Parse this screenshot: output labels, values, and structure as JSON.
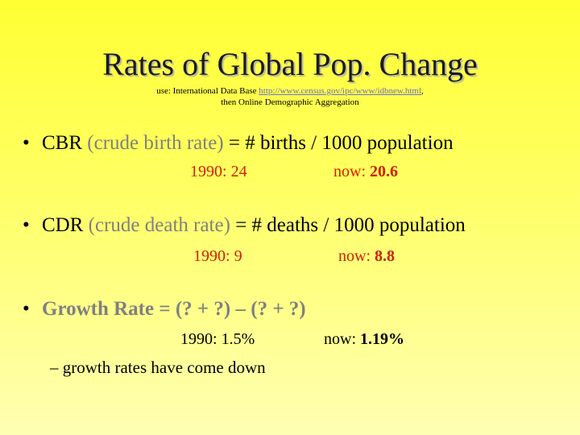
{
  "title": "Rates of Global Pop. Change",
  "source": {
    "prefix": "use: International Data Base ",
    "link": "http://www.census.gov/ipc/www/idbnew.html",
    "suffix": ",",
    "line2": "then Online Demographic Aggregation"
  },
  "bullets": [
    {
      "marker": "•",
      "term": "CBR",
      "expansion": " (crude birth rate)",
      "formula": " = # births / 1000 population",
      "past_label": "1990: ",
      "past_value": "24",
      "now_label": "now: ",
      "now_value": "20.6"
    },
    {
      "marker": "•",
      "term": "CDR",
      "expansion": " (crude death rate)",
      "formula": " = # deaths / 1000 population",
      "past_label": "1990: ",
      "past_value": "9",
      "now_label": "now: ",
      "now_value": "8.8"
    },
    {
      "marker": "•",
      "term": "Growth Rate = (? + ?) – (? + ?)",
      "past_label": "1990: ",
      "past_value": "1.5%",
      "now_label": "now: ",
      "now_value": "1.19%",
      "sub_bullet": "– growth rates have come down"
    }
  ],
  "colors": {
    "background_top": "#ffff33",
    "background_bottom": "#ffffb3",
    "emphasis": "#cc2200",
    "muted": "#808080",
    "link": "#6e6ec8"
  }
}
